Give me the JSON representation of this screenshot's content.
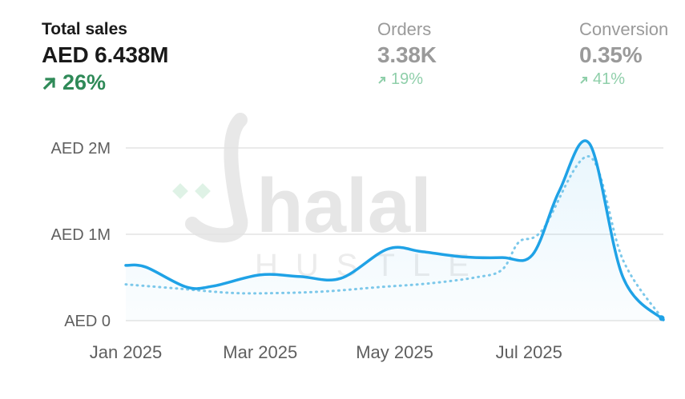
{
  "metrics": {
    "total_sales": {
      "label": "Total sales",
      "value": "AED 6.438M",
      "change": "26%"
    },
    "orders": {
      "label": "Orders",
      "value": "3.38K",
      "change": "19%"
    },
    "conversion": {
      "label": "Conversion",
      "value": "0.35%",
      "change": "41%"
    }
  },
  "watermark": {
    "text": "halal",
    "subtext": "HUSTLE"
  },
  "colors": {
    "series_current": "#1fa2e6",
    "series_previous": "#7cc8ea",
    "positive_change": "#2f8a58",
    "gridline": "#e3e3e3"
  },
  "chart_data": {
    "type": "line",
    "title": "",
    "xlabel": "",
    "ylabel": "",
    "y_ticks": [
      "AED 0",
      "AED 1M",
      "AED 2M"
    ],
    "y_tick_values": [
      0,
      1000000,
      2000000
    ],
    "x_ticks": [
      "Jan 2025",
      "Mar 2025",
      "May 2025",
      "Jul 2025"
    ],
    "x_tick_values": [
      0,
      2,
      4,
      6
    ],
    "xlim": [
      0,
      8
    ],
    "ylim": [
      0,
      2000000
    ],
    "grid": true,
    "series": [
      {
        "style": "solid",
        "color": "#1fa2e6",
        "x": [
          0,
          0.3,
          0.9,
          1.3,
          2.0,
          2.6,
          3.2,
          3.9,
          4.4,
          5.0,
          5.6,
          6.05,
          6.45,
          6.9,
          7.4,
          8.0
        ],
        "values": [
          640000,
          620000,
          390000,
          400000,
          530000,
          510000,
          490000,
          830000,
          800000,
          740000,
          730000,
          760000,
          1500000,
          2050000,
          500000,
          10000
        ]
      },
      {
        "style": "dotted",
        "color": "#7cc8ea",
        "x": [
          0,
          0.8,
          1.6,
          2.3,
          3.0,
          3.8,
          4.5,
          5.2,
          5.6,
          5.85,
          6.2,
          6.9,
          7.4,
          8.0
        ],
        "values": [
          420000,
          370000,
          320000,
          320000,
          340000,
          390000,
          430000,
          500000,
          590000,
          910000,
          1050000,
          1900000,
          700000,
          10000
        ]
      }
    ]
  }
}
